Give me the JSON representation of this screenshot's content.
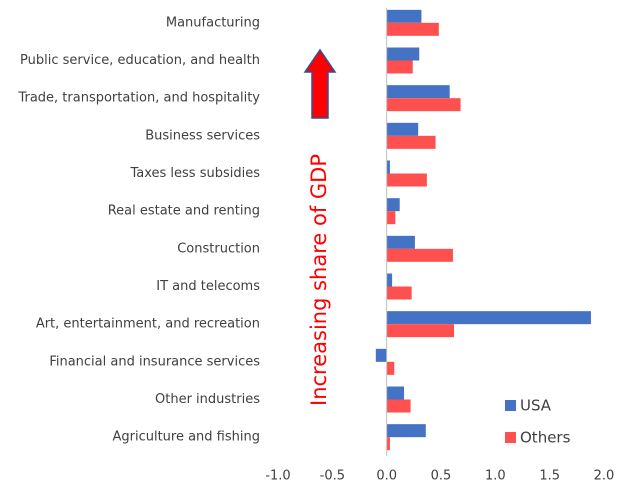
{
  "chart_data": {
    "type": "bar",
    "orientation": "horizontal",
    "categories": [
      "Manufacturing",
      "Public service, education, and health",
      "Trade, transportation, and hospitality",
      "Business services",
      "Taxes less subsidies",
      "Real estate and renting",
      "Construction",
      "IT and telecoms",
      "Art, entertainment, and recreation",
      "Financial and insurance services",
      "Other industries",
      "Agriculture and fishing"
    ],
    "series": [
      {
        "name": "USA",
        "color": "#4472c4",
        "values": [
          0.32,
          0.3,
          0.58,
          0.29,
          0.03,
          0.12,
          0.26,
          0.05,
          1.88,
          -0.1,
          0.16,
          0.36
        ]
      },
      {
        "name": "Others",
        "color": "#ff5050",
        "values": [
          0.48,
          0.24,
          0.68,
          0.45,
          0.37,
          0.08,
          0.61,
          0.23,
          0.62,
          0.07,
          0.22,
          0.03
        ]
      }
    ],
    "xlim": [
      -1.0,
      2.0
    ],
    "xticks": [
      {
        "value": -1.0,
        "label": "-1.0"
      },
      {
        "value": -0.5,
        "label": "-0.5"
      },
      {
        "value": 0,
        "label": "0.0"
      },
      {
        "value": 0.5,
        "label": "0.5"
      },
      {
        "value": 1.0,
        "label": "1.0"
      },
      {
        "value": 1.5,
        "label": "1.5"
      },
      {
        "value": 2.0,
        "label": "2.0"
      }
    ],
    "annotation": "Increasing share of GDP",
    "legend_position": "lower right",
    "grid": false
  }
}
